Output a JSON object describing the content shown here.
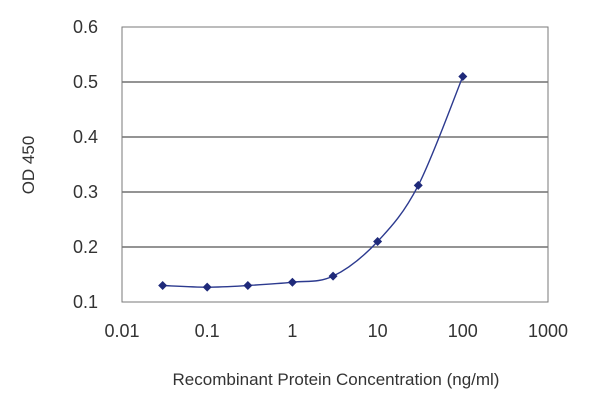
{
  "chart_data": {
    "type": "line",
    "title": "",
    "xlabel": "Recombinant Protein Concentration (ng/ml)",
    "ylabel": "OD 450",
    "xscale": "log",
    "xlim": [
      0.01,
      1000
    ],
    "ylim": [
      0.1,
      0.6
    ],
    "x_ticks": [
      0.01,
      0.1,
      1,
      10,
      100,
      1000
    ],
    "x_tick_labels": [
      "0.01",
      "0.1",
      "1",
      "10",
      "100",
      "1000"
    ],
    "y_ticks": [
      0.1,
      0.2,
      0.3,
      0.4,
      0.5,
      0.6
    ],
    "y_tick_labels": [
      "0.1",
      "0.2",
      "0.3",
      "0.4",
      "0.5",
      "0.6"
    ],
    "grid": "horizontal",
    "legend": "none",
    "series": [
      {
        "x": [
          0.03,
          0.1,
          0.3,
          1,
          3,
          10,
          30,
          100
        ],
        "y": [
          0.13,
          0.127,
          0.13,
          0.136,
          0.147,
          0.21,
          0.312,
          0.51
        ],
        "color": "#1f2a7a",
        "marker": "diamond",
        "smooth": true
      }
    ]
  }
}
